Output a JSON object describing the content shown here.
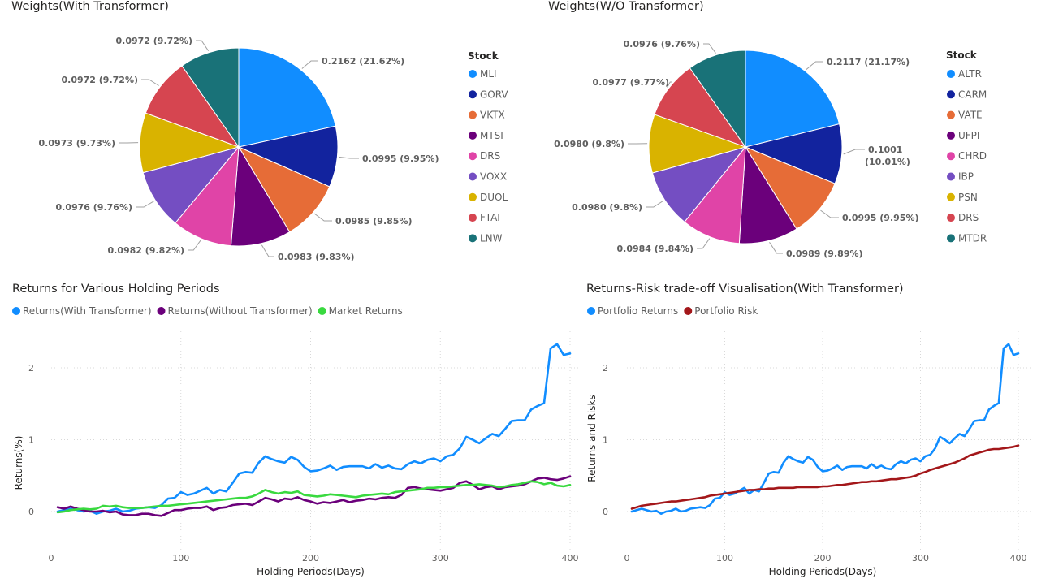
{
  "chart_data": [
    {
      "type": "pie",
      "title": "Weights(With Transformer)",
      "legend_title": "Stock",
      "legend_position": "right",
      "slices": [
        {
          "name": "MLI",
          "value": 0.2162,
          "label": "0.2162 (21.62%)",
          "color": "#118DFF"
        },
        {
          "name": "GORV",
          "value": 0.0995,
          "label": "0.0995 (9.95%)",
          "color": "#12239E"
        },
        {
          "name": "VKTX",
          "value": 0.0985,
          "label": "0.0985 (9.85%)",
          "color": "#E66C37"
        },
        {
          "name": "MTSI",
          "value": 0.0983,
          "label": "0.0983 (9.83%)",
          "color": "#6B007B"
        },
        {
          "name": "DRS",
          "value": 0.0982,
          "label": "0.0982 (9.82%)",
          "color": "#E044A7"
        },
        {
          "name": "VOXX",
          "value": 0.0976,
          "label": "0.0976 (9.76%)",
          "color": "#744EC2"
        },
        {
          "name": "DUOL",
          "value": 0.0973,
          "label": "0.0973 (9.73%)",
          "color": "#D9B300"
        },
        {
          "name": "FTAI",
          "value": 0.0972,
          "label": "0.0972 (9.72%)",
          "color": "#D64550"
        },
        {
          "name": "LNW",
          "value": 0.0972,
          "label": "0.0972 (9.72%)",
          "color": "#197278"
        }
      ]
    },
    {
      "type": "pie",
      "title": "Weights(W/O Transformer)",
      "legend_title": "Stock",
      "legend_position": "right",
      "slices": [
        {
          "name": "ALTR",
          "value": 0.2117,
          "label": "0.2117 (21.17%)",
          "color": "#118DFF"
        },
        {
          "name": "CARM",
          "value": 0.1001,
          "label": "0.1001 (10.01%)",
          "color": "#12239E"
        },
        {
          "name": "VATE",
          "value": 0.0995,
          "label": "0.0995 (9.95%)",
          "color": "#E66C37"
        },
        {
          "name": "UFPI",
          "value": 0.0989,
          "label": "0.0989 (9.89%)",
          "color": "#6B007B"
        },
        {
          "name": "CHRD",
          "value": 0.0984,
          "label": "0.0984 (9.84%)",
          "color": "#E044A7"
        },
        {
          "name": "IBP",
          "value": 0.098,
          "label": "0.0980 (9.8%)",
          "color": "#744EC2"
        },
        {
          "name": "PSN",
          "value": 0.098,
          "label": "0.0980 (9.8%)",
          "color": "#D9B300"
        },
        {
          "name": "DRS",
          "value": 0.0977,
          "label": "0.0977 (9.77%)",
          "color": "#D64550"
        },
        {
          "name": "MTDR",
          "value": 0.0976,
          "label": "0.0976 (9.76%)",
          "color": "#197278"
        }
      ]
    },
    {
      "type": "line",
      "title": "Returns for Various Holding Periods",
      "xlabel": "Holding Periods(Days)",
      "ylabel": "Returns(%)",
      "xlim": [
        0,
        410
      ],
      "ylim": [
        -0.45,
        2.45
      ],
      "xticks": [
        0,
        100,
        200,
        300,
        400
      ],
      "yticks": [
        0,
        1,
        2
      ],
      "grid": true,
      "legend_position": "top-left",
      "x": [
        5,
        10,
        15,
        20,
        25,
        30,
        35,
        40,
        45,
        50,
        55,
        60,
        65,
        70,
        75,
        80,
        85,
        90,
        95,
        100,
        105,
        110,
        115,
        120,
        125,
        130,
        135,
        140,
        145,
        150,
        155,
        160,
        165,
        170,
        175,
        180,
        185,
        190,
        195,
        200,
        205,
        210,
        215,
        220,
        225,
        230,
        235,
        240,
        245,
        250,
        255,
        260,
        265,
        270,
        275,
        280,
        285,
        290,
        295,
        300,
        305,
        310,
        315,
        320,
        325,
        330,
        335,
        340,
        345,
        350,
        355,
        360,
        365,
        370,
        375,
        380,
        385,
        390,
        395,
        400
      ],
      "series": [
        {
          "name": "Returns(With Transformer)",
          "color": "#118DFF",
          "values": [
            0.0,
            0.02,
            0.04,
            0.02,
            0.0,
            0.01,
            -0.03,
            0.0,
            0.01,
            0.04,
            0.0,
            0.01,
            0.04,
            0.05,
            0.06,
            0.05,
            0.09,
            0.18,
            0.19,
            0.27,
            0.23,
            0.25,
            0.29,
            0.33,
            0.25,
            0.3,
            0.28,
            0.4,
            0.53,
            0.55,
            0.54,
            0.68,
            0.77,
            0.73,
            0.7,
            0.68,
            0.76,
            0.72,
            0.62,
            0.56,
            0.57,
            0.6,
            0.64,
            0.58,
            0.62,
            0.63,
            0.63,
            0.63,
            0.6,
            0.66,
            0.61,
            0.64,
            0.6,
            0.59,
            0.66,
            0.7,
            0.67,
            0.72,
            0.74,
            0.7,
            0.77,
            0.79,
            0.88,
            1.04,
            1.0,
            0.95,
            1.02,
            1.08,
            1.05,
            1.15,
            1.26,
            1.27,
            1.27,
            1.42,
            1.47,
            1.51,
            2.27,
            2.33,
            2.18,
            2.2
          ]
        },
        {
          "name": "Returns(Without Transformer)",
          "color": "#6B007B",
          "values": [
            0.06,
            0.04,
            0.07,
            0.04,
            0.02,
            0.0,
            0.0,
            0.01,
            -0.01,
            0.0,
            -0.04,
            -0.05,
            -0.05,
            -0.03,
            -0.03,
            -0.05,
            -0.06,
            -0.02,
            0.02,
            0.02,
            0.04,
            0.05,
            0.05,
            0.07,
            0.02,
            0.05,
            0.06,
            0.09,
            0.1,
            0.11,
            0.09,
            0.14,
            0.19,
            0.17,
            0.14,
            0.18,
            0.17,
            0.2,
            0.16,
            0.14,
            0.11,
            0.13,
            0.12,
            0.14,
            0.16,
            0.13,
            0.15,
            0.16,
            0.18,
            0.17,
            0.19,
            0.2,
            0.19,
            0.23,
            0.33,
            0.34,
            0.32,
            0.31,
            0.3,
            0.29,
            0.31,
            0.33,
            0.4,
            0.42,
            0.37,
            0.31,
            0.34,
            0.35,
            0.31,
            0.34,
            0.35,
            0.36,
            0.38,
            0.42,
            0.46,
            0.47,
            0.45,
            0.44,
            0.46,
            0.49
          ]
        },
        {
          "name": "Market Returns",
          "color": "#39D93F",
          "values": [
            -0.01,
            0.0,
            0.02,
            0.03,
            0.04,
            0.03,
            0.04,
            0.08,
            0.07,
            0.08,
            0.06,
            0.05,
            0.05,
            0.05,
            0.06,
            0.07,
            0.08,
            0.08,
            0.09,
            0.1,
            0.11,
            0.12,
            0.13,
            0.14,
            0.15,
            0.16,
            0.17,
            0.18,
            0.19,
            0.19,
            0.21,
            0.25,
            0.3,
            0.27,
            0.25,
            0.27,
            0.26,
            0.28,
            0.23,
            0.22,
            0.21,
            0.22,
            0.24,
            0.23,
            0.22,
            0.21,
            0.2,
            0.22,
            0.23,
            0.24,
            0.25,
            0.24,
            0.27,
            0.28,
            0.29,
            0.3,
            0.31,
            0.33,
            0.33,
            0.34,
            0.34,
            0.35,
            0.36,
            0.37,
            0.37,
            0.38,
            0.37,
            0.36,
            0.34,
            0.35,
            0.37,
            0.38,
            0.4,
            0.42,
            0.41,
            0.38,
            0.4,
            0.36,
            0.35,
            0.37
          ]
        }
      ]
    },
    {
      "type": "line",
      "title": "Returns-Risk trade-off Visualisation(With Transformer)",
      "xlabel": "Holding Periods(Days)",
      "ylabel": "Returns and Risks",
      "xlim": [
        0,
        410
      ],
      "ylim": [
        -0.45,
        2.45
      ],
      "xticks": [
        0,
        100,
        200,
        300,
        400
      ],
      "yticks": [
        0,
        1,
        2
      ],
      "grid": true,
      "legend_position": "top-left",
      "x": [
        5,
        10,
        15,
        20,
        25,
        30,
        35,
        40,
        45,
        50,
        55,
        60,
        65,
        70,
        75,
        80,
        85,
        90,
        95,
        100,
        105,
        110,
        115,
        120,
        125,
        130,
        135,
        140,
        145,
        150,
        155,
        160,
        165,
        170,
        175,
        180,
        185,
        190,
        195,
        200,
        205,
        210,
        215,
        220,
        225,
        230,
        235,
        240,
        245,
        250,
        255,
        260,
        265,
        270,
        275,
        280,
        285,
        290,
        295,
        300,
        305,
        310,
        315,
        320,
        325,
        330,
        335,
        340,
        345,
        350,
        355,
        360,
        365,
        370,
        375,
        380,
        385,
        390,
        395,
        400
      ],
      "series": [
        {
          "name": "Portfolio Returns",
          "color": "#118DFF",
          "values": [
            0.0,
            0.02,
            0.04,
            0.02,
            0.0,
            0.01,
            -0.03,
            0.0,
            0.01,
            0.04,
            0.0,
            0.01,
            0.04,
            0.05,
            0.06,
            0.05,
            0.09,
            0.18,
            0.19,
            0.27,
            0.23,
            0.25,
            0.29,
            0.33,
            0.25,
            0.3,
            0.28,
            0.4,
            0.53,
            0.55,
            0.54,
            0.68,
            0.77,
            0.73,
            0.7,
            0.68,
            0.76,
            0.72,
            0.62,
            0.56,
            0.57,
            0.6,
            0.64,
            0.58,
            0.62,
            0.63,
            0.63,
            0.63,
            0.6,
            0.66,
            0.61,
            0.64,
            0.6,
            0.59,
            0.66,
            0.7,
            0.67,
            0.72,
            0.74,
            0.7,
            0.77,
            0.79,
            0.88,
            1.04,
            1.0,
            0.95,
            1.02,
            1.08,
            1.05,
            1.15,
            1.26,
            1.27,
            1.27,
            1.42,
            1.47,
            1.51,
            2.27,
            2.33,
            2.18,
            2.2
          ]
        },
        {
          "name": "Portfolio Risk",
          "color": "#A3171A",
          "values": [
            0.04,
            0.06,
            0.08,
            0.09,
            0.1,
            0.11,
            0.12,
            0.13,
            0.14,
            0.14,
            0.15,
            0.16,
            0.17,
            0.18,
            0.19,
            0.2,
            0.22,
            0.23,
            0.24,
            0.25,
            0.26,
            0.27,
            0.28,
            0.29,
            0.3,
            0.3,
            0.31,
            0.31,
            0.32,
            0.32,
            0.33,
            0.33,
            0.33,
            0.33,
            0.34,
            0.34,
            0.34,
            0.34,
            0.34,
            0.35,
            0.35,
            0.36,
            0.37,
            0.37,
            0.38,
            0.39,
            0.4,
            0.41,
            0.41,
            0.42,
            0.42,
            0.43,
            0.44,
            0.45,
            0.45,
            0.46,
            0.47,
            0.48,
            0.5,
            0.53,
            0.55,
            0.58,
            0.6,
            0.62,
            0.64,
            0.66,
            0.68,
            0.71,
            0.74,
            0.78,
            0.8,
            0.82,
            0.84,
            0.86,
            0.87,
            0.87,
            0.88,
            0.89,
            0.9,
            0.92
          ]
        }
      ]
    }
  ]
}
